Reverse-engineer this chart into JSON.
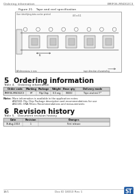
{
  "page_header_left": "Ordering information",
  "page_header_right": "EMIF06-MSD02C3",
  "fig_label": "Figure 21.   Tape and reel specification",
  "fig_sublabel": "User identifying data can be printed",
  "section5_num": "5",
  "section5_title": "Ordering information",
  "table4_label": "Table 4.   Ordering information",
  "table4_headers": [
    "Order code",
    "Marking",
    "Package",
    "Weight",
    "Base qty",
    "Delivery mode"
  ],
  "table4_row": [
    "EMIF06-MSD02C3",
    "HF",
    "Flip Chip",
    "0.5 mg",
    "10000",
    "Tape and reel 7\""
  ],
  "note_label": "Note:",
  "note_lines": [
    "More information is available in the application notes:",
    "AN2940: Flip Chip Package description and recommendations for use",
    "AN1181: ENA Filters Recommendations and measurements"
  ],
  "section6_num": "6",
  "section6_title": "Revision history",
  "table5_label": "Table 5.   Document revision history",
  "table5_headers": [
    "Date",
    "Revision",
    "Changes"
  ],
  "table5_row": [
    "10-Aug-2010",
    "1",
    "First release"
  ],
  "footer_left": "18/1",
  "footer_center": "Doc ID 18010 Rev 1",
  "bg_color": "#ffffff",
  "blue_logo_color": "#1a56a0"
}
